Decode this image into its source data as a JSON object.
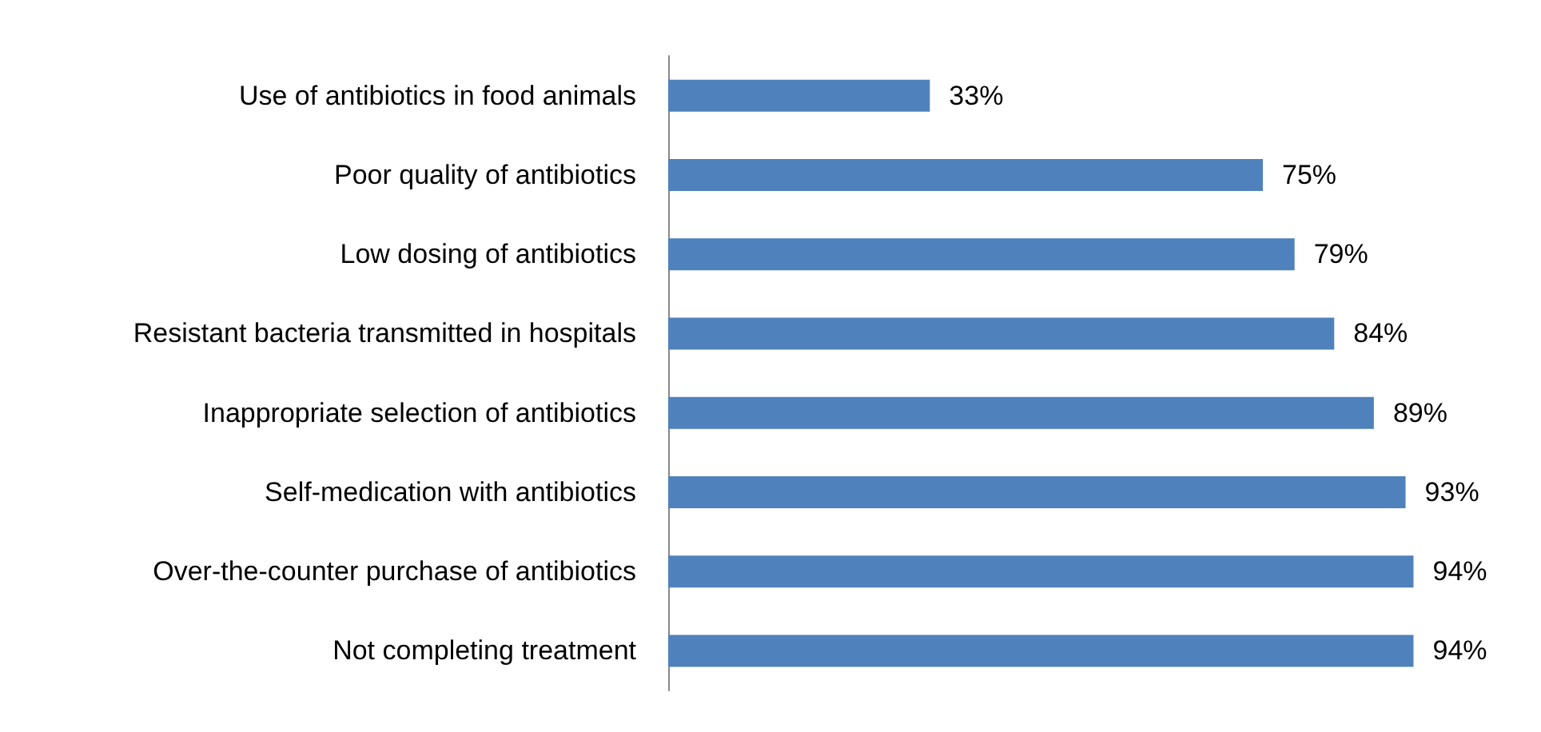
{
  "chart_data": {
    "type": "bar",
    "orientation": "horizontal",
    "categories": [
      "Use of antibiotics in food animals",
      "Poor quality of antibiotics",
      "Low dosing of antibiotics",
      "Resistant bacteria transmitted in hospitals",
      "Inappropriate selection of antibiotics",
      "Self-medication with antibiotics",
      "Over-the-counter purchase of antibiotics",
      "Not completing treatment"
    ],
    "values": [
      33,
      75,
      79,
      84,
      89,
      93,
      94,
      94
    ],
    "color": "#4f81bd",
    "data_labels": true,
    "value_labels": [
      "33%",
      "75%",
      "79%",
      "84%",
      "89%",
      "93%",
      "94%",
      "94%"
    ]
  }
}
